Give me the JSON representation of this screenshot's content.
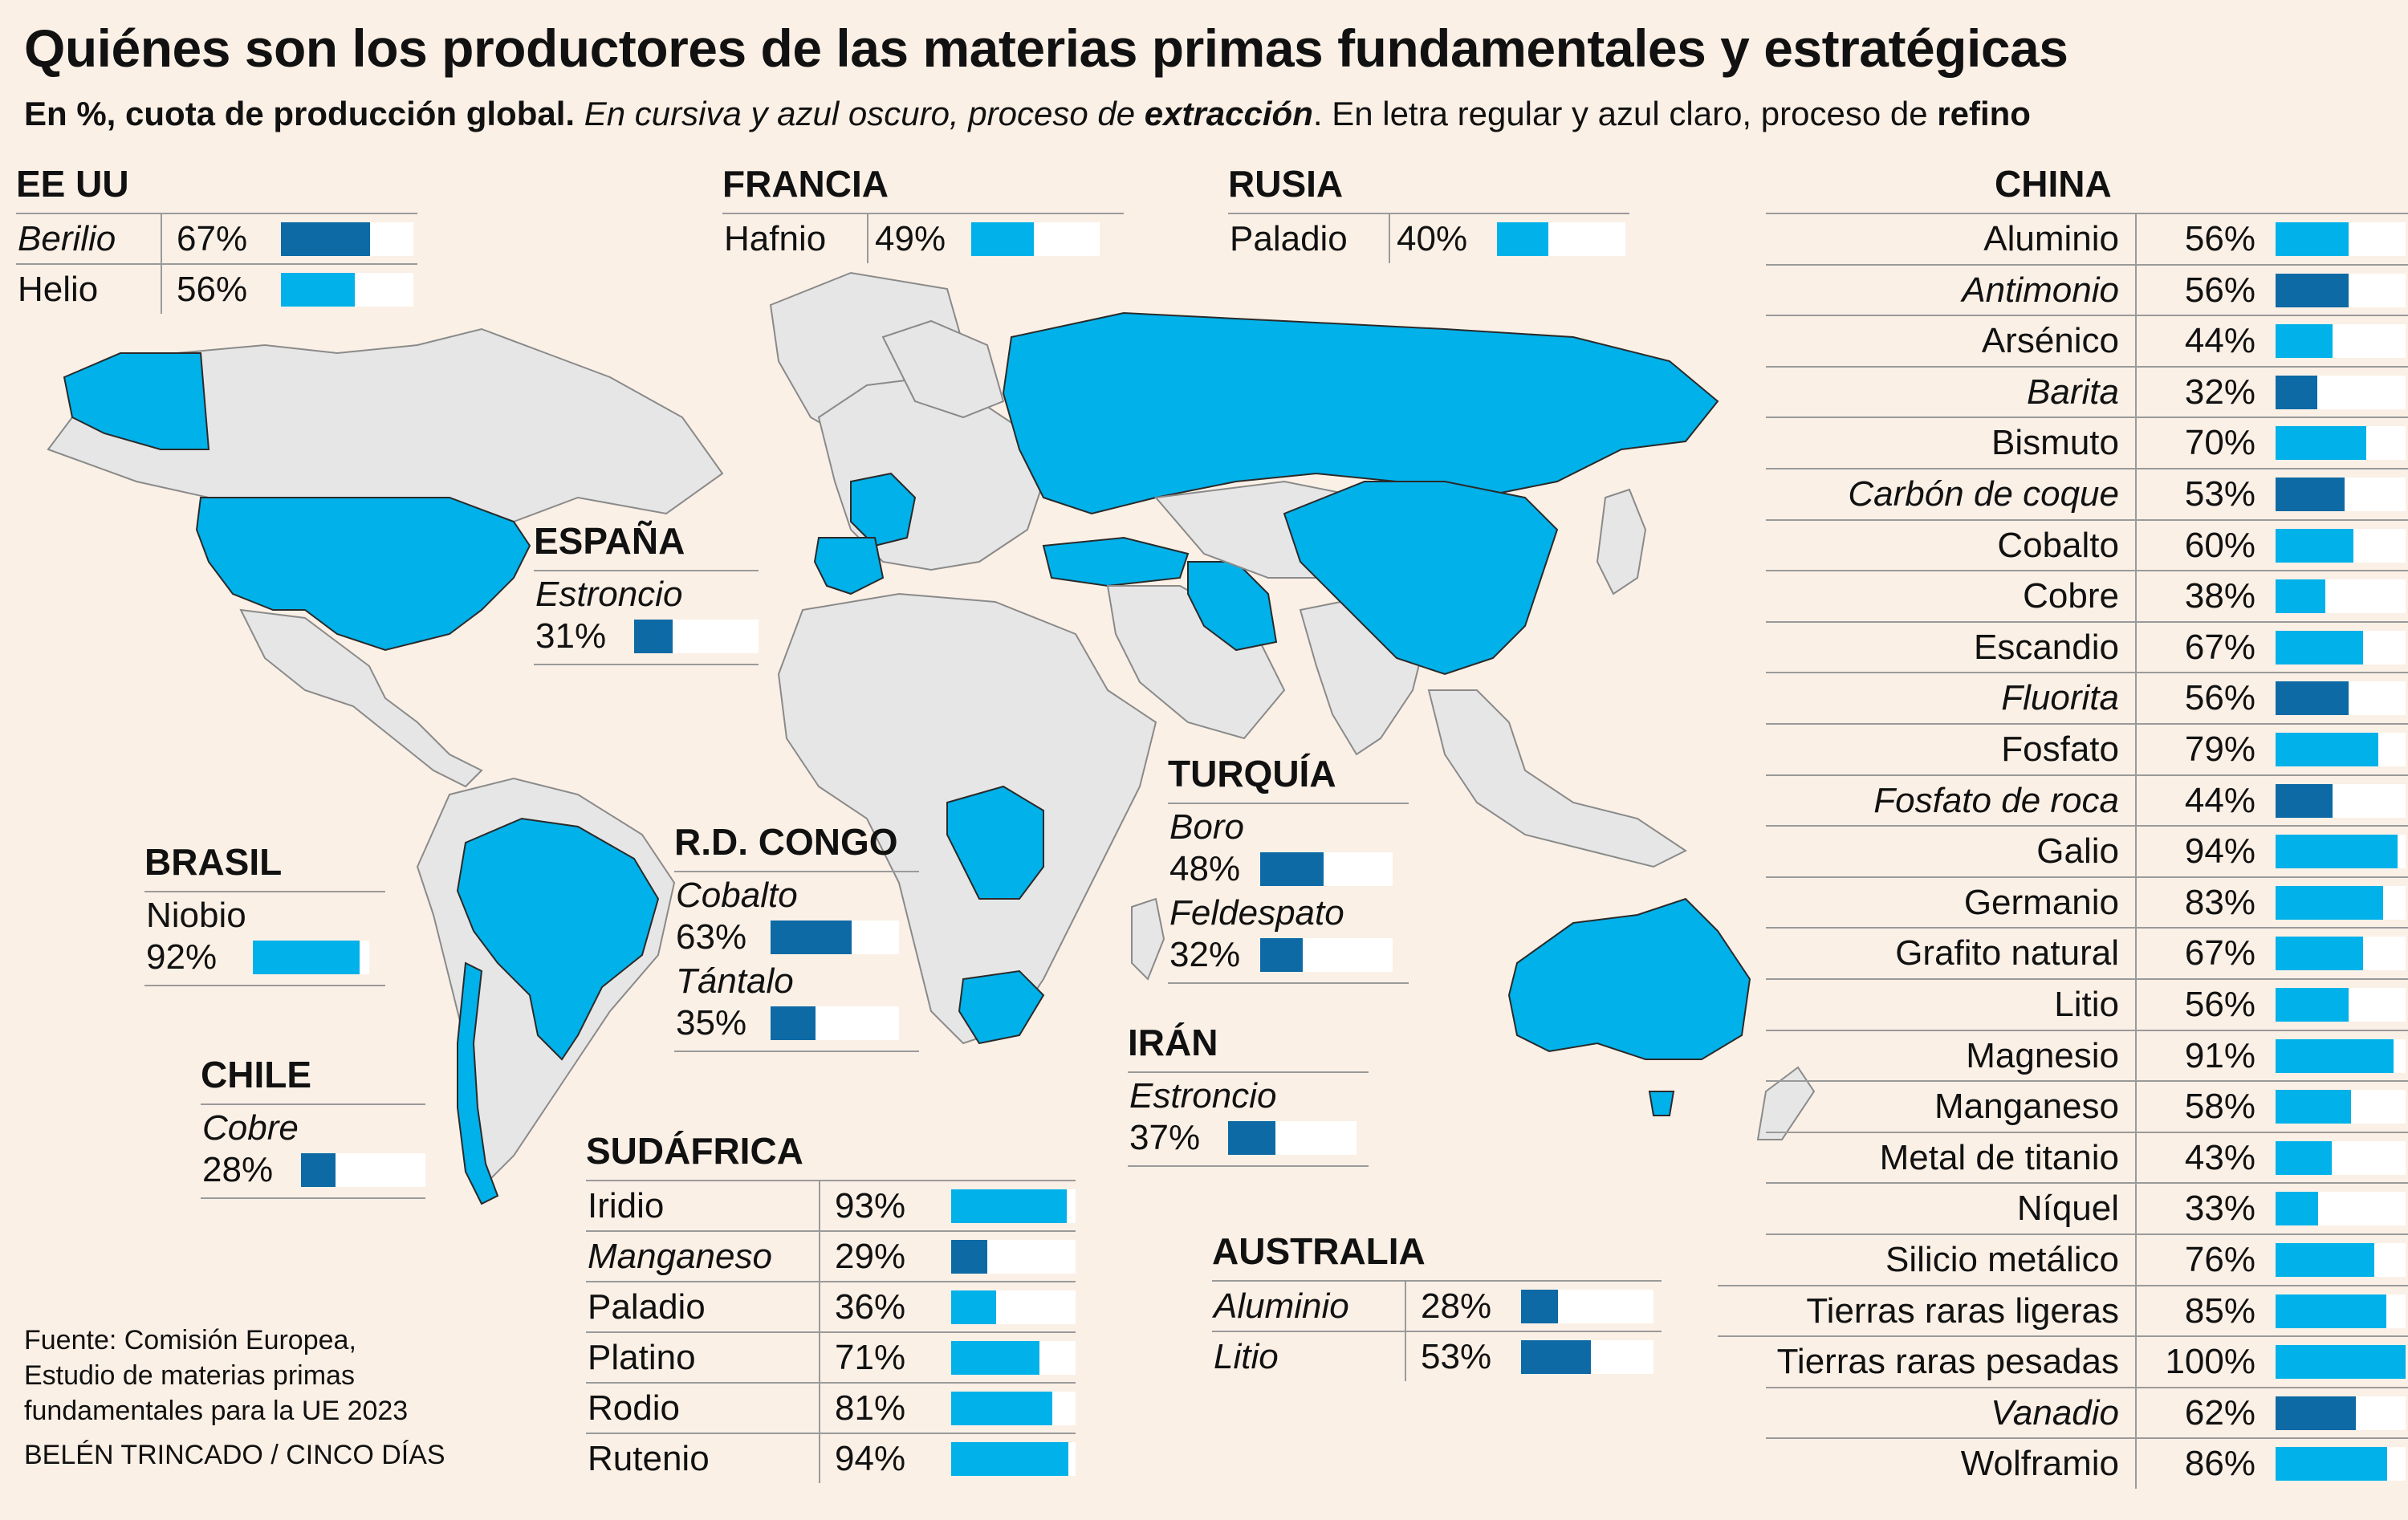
{
  "title": "Quiénes son los productores de las materias primas fundamentales y estratégicas",
  "subtitle": {
    "bold": "En %, cuota de producción global.",
    "italic": " En cursiva y azul oscuro, proceso de ",
    "italic_bold": "extracción",
    "regular": ". En letra regular y azul claro, proceso de ",
    "bold_end": "refino"
  },
  "colors": {
    "background": "#fbf0e6",
    "extraction": "#0d6aa5",
    "refining": "#00b1ea",
    "land": "#e6e6e6",
    "highlight": "#00b1ea"
  },
  "source": {
    "line1": "Fuente: Comisión Europea,",
    "line2": "Estudio de materias primas",
    "line3": "fundamentales para la UE 2023"
  },
  "credit": "BELÉN TRINCADO / CINCO DÍAS",
  "chart_data": {
    "type": "bar",
    "title": "Quiénes son los productores de las materias primas fundamentales y estratégicas",
    "unit": "%",
    "xlim": [
      0,
      100
    ],
    "countries": [
      {
        "name": "EE UU",
        "items": [
          {
            "material": "Berilio",
            "value": 67,
            "process": "extraction"
          },
          {
            "material": "Helio",
            "value": 56,
            "process": "refining"
          }
        ]
      },
      {
        "name": "FRANCIA",
        "items": [
          {
            "material": "Hafnio",
            "value": 49,
            "process": "refining"
          }
        ]
      },
      {
        "name": "RUSIA",
        "items": [
          {
            "material": "Paladio",
            "value": 40,
            "process": "refining"
          }
        ]
      },
      {
        "name": "ESPAÑA",
        "items": [
          {
            "material": "Estroncio",
            "value": 31,
            "process": "extraction"
          }
        ]
      },
      {
        "name": "BRASIL",
        "items": [
          {
            "material": "Niobio",
            "value": 92,
            "process": "refining"
          }
        ]
      },
      {
        "name": "CHILE",
        "items": [
          {
            "material": "Cobre",
            "value": 28,
            "process": "extraction"
          }
        ]
      },
      {
        "name": "R.D. CONGO",
        "items": [
          {
            "material": "Cobalto",
            "value": 63,
            "process": "extraction"
          },
          {
            "material": "Tántalo",
            "value": 35,
            "process": "extraction"
          }
        ]
      },
      {
        "name": "TURQUÍA",
        "items": [
          {
            "material": "Boro",
            "value": 48,
            "process": "extraction"
          },
          {
            "material": "Feldespato",
            "value": 32,
            "process": "extraction"
          }
        ]
      },
      {
        "name": "IRÁN",
        "items": [
          {
            "material": "Estroncio",
            "value": 37,
            "process": "extraction"
          }
        ]
      },
      {
        "name": "SUDÁFRICA",
        "items": [
          {
            "material": "Iridio",
            "value": 93,
            "process": "refining"
          },
          {
            "material": "Manganeso",
            "value": 29,
            "process": "extraction"
          },
          {
            "material": "Paladio",
            "value": 36,
            "process": "refining"
          },
          {
            "material": "Platino",
            "value": 71,
            "process": "refining"
          },
          {
            "material": "Rodio",
            "value": 81,
            "process": "refining"
          },
          {
            "material": "Rutenio",
            "value": 94,
            "process": "refining"
          }
        ]
      },
      {
        "name": "AUSTRALIA",
        "items": [
          {
            "material": "Aluminio",
            "value": 28,
            "process": "extraction"
          },
          {
            "material": "Litio",
            "value": 53,
            "process": "extraction"
          }
        ]
      },
      {
        "name": "CHINA",
        "items": [
          {
            "material": "Aluminio",
            "value": 56,
            "process": "refining"
          },
          {
            "material": "Antimonio",
            "value": 56,
            "process": "extraction"
          },
          {
            "material": "Arsénico",
            "value": 44,
            "process": "refining"
          },
          {
            "material": "Barita",
            "value": 32,
            "process": "extraction"
          },
          {
            "material": "Bismuto",
            "value": 70,
            "process": "refining"
          },
          {
            "material": "Carbón de coque",
            "value": 53,
            "process": "extraction"
          },
          {
            "material": "Cobalto",
            "value": 60,
            "process": "refining"
          },
          {
            "material": "Cobre",
            "value": 38,
            "process": "refining"
          },
          {
            "material": "Escandio",
            "value": 67,
            "process": "refining"
          },
          {
            "material": "Fluorita",
            "value": 56,
            "process": "extraction"
          },
          {
            "material": "Fosfato",
            "value": 79,
            "process": "refining"
          },
          {
            "material": "Fosfato de roca",
            "value": 44,
            "process": "extraction"
          },
          {
            "material": "Galio",
            "value": 94,
            "process": "refining"
          },
          {
            "material": "Germanio",
            "value": 83,
            "process": "refining"
          },
          {
            "material": "Grafito natural",
            "value": 67,
            "process": "refining"
          },
          {
            "material": "Litio",
            "value": 56,
            "process": "refining"
          },
          {
            "material": "Magnesio",
            "value": 91,
            "process": "refining"
          },
          {
            "material": "Manganeso",
            "value": 58,
            "process": "refining"
          },
          {
            "material": "Metal de titanio",
            "value": 43,
            "process": "refining"
          },
          {
            "material": "Níquel",
            "value": 33,
            "process": "refining"
          },
          {
            "material": "Silicio metálico",
            "value": 76,
            "process": "refining"
          },
          {
            "material": "Tierras raras ligeras",
            "value": 85,
            "process": "refining"
          },
          {
            "material": "Tierras raras pesadas",
            "value": 100,
            "process": "refining"
          },
          {
            "material": "Vanadio",
            "value": 62,
            "process": "extraction"
          },
          {
            "material": "Wolframio",
            "value": 86,
            "process": "refining"
          }
        ]
      }
    ]
  }
}
